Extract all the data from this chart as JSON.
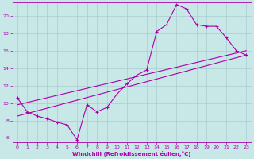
{
  "xlabel": "Windchill (Refroidissement éolien,°C)",
  "bg_color": "#c8e8e8",
  "line_color": "#aa00aa",
  "grid_color": "#aacccc",
  "xlim": [
    -0.5,
    23.5
  ],
  "ylim": [
    5.5,
    21.5
  ],
  "xticks": [
    0,
    1,
    2,
    3,
    4,
    5,
    6,
    7,
    8,
    9,
    10,
    11,
    12,
    13,
    14,
    15,
    16,
    17,
    18,
    19,
    20,
    21,
    22,
    23
  ],
  "yticks": [
    6,
    8,
    10,
    12,
    14,
    16,
    18,
    20
  ],
  "data_x": [
    0,
    1,
    2,
    3,
    4,
    5,
    6,
    7,
    8,
    9,
    10,
    11,
    12,
    13,
    14,
    15,
    16,
    17,
    18,
    19,
    20,
    21,
    22,
    23
  ],
  "data_y": [
    10.6,
    9.0,
    8.5,
    8.2,
    7.8,
    7.5,
    5.8,
    9.8,
    9.0,
    9.5,
    11.0,
    12.2,
    13.2,
    13.8,
    18.2,
    19.0,
    21.3,
    20.8,
    19.0,
    18.8,
    18.8,
    17.5,
    16.0,
    15.5
  ],
  "line1_x": [
    0,
    23
  ],
  "line1_y": [
    8.5,
    15.5
  ],
  "line2_x": [
    0,
    23
  ],
  "line2_y": [
    9.8,
    16.0
  ]
}
